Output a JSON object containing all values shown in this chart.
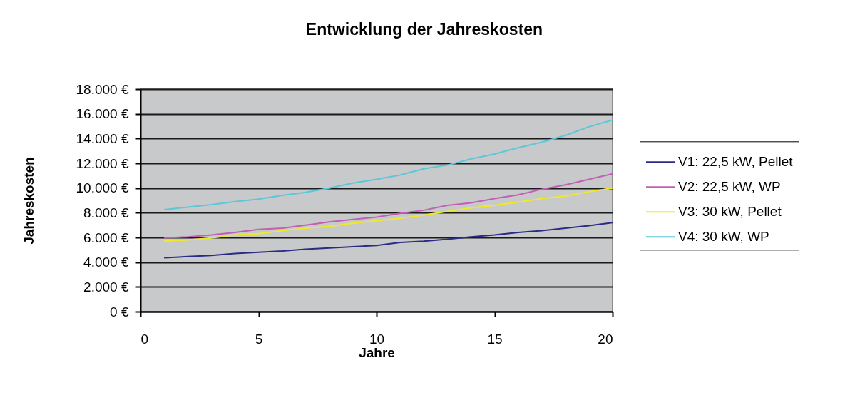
{
  "chart_data": {
    "type": "line",
    "title": "Entwicklung der Jahreskosten",
    "xlabel": "Jahre",
    "ylabel": "Jahreskosten",
    "x": [
      1,
      2,
      3,
      4,
      5,
      6,
      7,
      8,
      9,
      10,
      11,
      12,
      13,
      14,
      15,
      16,
      17,
      18,
      19,
      20
    ],
    "series": [
      {
        "name": "V1: 22,5 kW, Pellet",
        "color": "#2b2a85",
        "values": [
          4350,
          4450,
          4550,
          4700,
          4800,
          4900,
          5050,
          5150,
          5250,
          5350,
          5600,
          5700,
          5850,
          6050,
          6200,
          6400,
          6550,
          6750,
          6950,
          7200
        ]
      },
      {
        "name": "V2: 22,5 kW, WP",
        "color": "#c25fb4",
        "values": [
          5950,
          6050,
          6200,
          6400,
          6650,
          6750,
          7000,
          7250,
          7450,
          7650,
          7950,
          8200,
          8600,
          8800,
          9150,
          9450,
          9900,
          10250,
          10700,
          11150
        ]
      },
      {
        "name": "V3: 30 kW, Pellet",
        "color": "#eeea2a",
        "values": [
          5700,
          5800,
          5950,
          6200,
          6300,
          6550,
          6750,
          6900,
          7150,
          7350,
          7550,
          7800,
          8100,
          8400,
          8600,
          8850,
          9150,
          9350,
          9700,
          10000
        ]
      },
      {
        "name": "V4: 30 kW, WP",
        "color": "#5cc6da",
        "values": [
          8250,
          8450,
          8650,
          8900,
          9100,
          9400,
          9650,
          10000,
          10400,
          10700,
          11050,
          11550,
          11850,
          12350,
          12750,
          13250,
          13700,
          14250,
          14950,
          15500
        ]
      }
    ],
    "xlim": [
      0,
      20
    ],
    "xticks": [
      0,
      5,
      10,
      15,
      20
    ],
    "ylim": [
      0,
      18000
    ],
    "yticks": [
      {
        "value": 0,
        "label": "0 €"
      },
      {
        "value": 2000,
        "label": "2.000 €"
      },
      {
        "value": 4000,
        "label": "4.000 €"
      },
      {
        "value": 6000,
        "label": "6.000 €"
      },
      {
        "value": 8000,
        "label": "8.000 €"
      },
      {
        "value": 10000,
        "label": "10.000 €"
      },
      {
        "value": 12000,
        "label": "12.000 €"
      },
      {
        "value": 14000,
        "label": "14.000 €"
      },
      {
        "value": 16000,
        "label": "16.000 €"
      },
      {
        "value": 18000,
        "label": "18.000 €"
      }
    ],
    "grid": "y",
    "legend": "right",
    "marker": "none",
    "line_style": "solid"
  }
}
